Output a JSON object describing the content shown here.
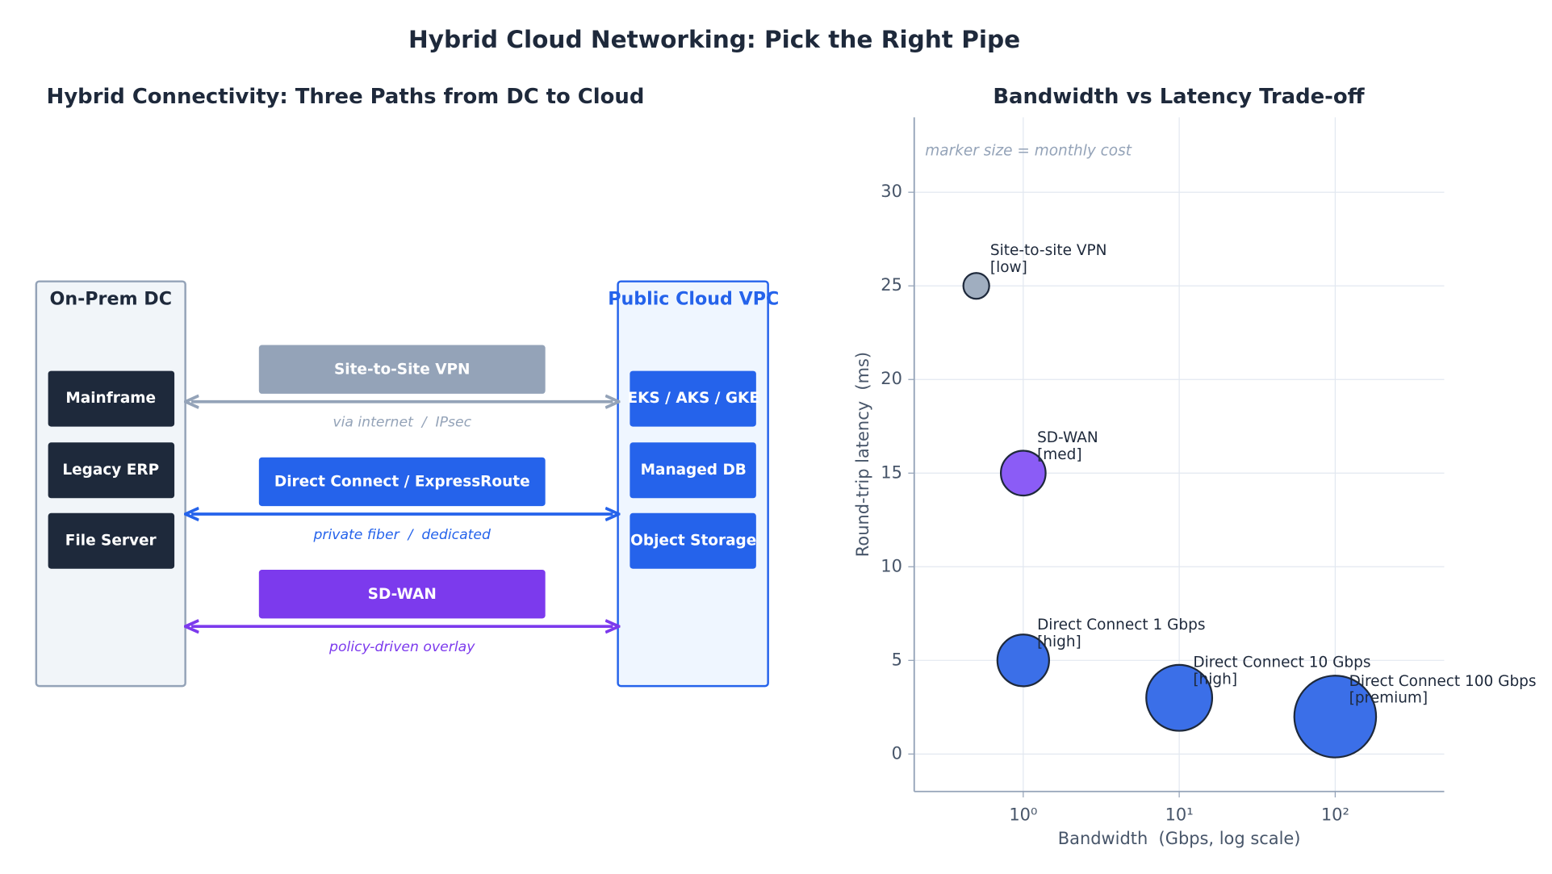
{
  "title": "Hybrid Cloud Networking: Pick the Right Pipe",
  "diagram": {
    "title": "Hybrid Connectivity: Three Paths from DC to Cloud",
    "dc": {
      "title": "On-Prem DC",
      "items": [
        "Mainframe",
        "Legacy ERP",
        "File Server"
      ]
    },
    "cloud": {
      "title": "Public Cloud VPC",
      "items": [
        "EKS / AKS / GKE",
        "Managed DB",
        "Object Storage"
      ]
    },
    "links": [
      {
        "label": "Site-to-Site VPN",
        "note": "via internet  /  IPsec",
        "color": "#94a3b8"
      },
      {
        "label": "Direct Connect / ExpressRoute",
        "note": "private fiber  /  dedicated",
        "color": "#2563eb"
      },
      {
        "label": "SD-WAN",
        "note": "policy-driven overlay",
        "color": "#7c3aed"
      }
    ]
  },
  "chart_data": {
    "type": "scatter",
    "title": "Bandwidth vs Latency Trade-off",
    "x_label": "Bandwidth  (Gbps, log scale)",
    "y_label": "Round-trip latency  (ms)",
    "annotation": "marker size = monthly cost",
    "labels": [
      "Site-to-site VPN",
      "SD-WAN",
      "Direct Connect 1 Gbps",
      "Direct Connect 10 Gbps",
      "Direct Connect 100 Gbps"
    ],
    "tiers": [
      "[low]",
      "[med]",
      "[high]",
      "[high]",
      "[premium]"
    ],
    "x": [
      0.5,
      1,
      1,
      10,
      100
    ],
    "y": [
      25,
      15,
      5,
      3,
      2
    ],
    "sizes": [
      1,
      3,
      4,
      6.5,
      10
    ],
    "colors": [
      "#a0aec0",
      "#8b5cf6",
      "#3b6fe8",
      "#3b6fe8",
      "#3b6fe8"
    ],
    "xlim": [
      0.2,
      500
    ],
    "ylim": [
      -2,
      34
    ],
    "x_log": true,
    "grid": true,
    "xticks": [
      {
        "value": 1,
        "label": "10⁰"
      },
      {
        "value": 10,
        "label": "10¹"
      },
      {
        "value": 100,
        "label": "10²"
      }
    ],
    "yticks": [
      0,
      5,
      10,
      15,
      20,
      25,
      30
    ]
  }
}
